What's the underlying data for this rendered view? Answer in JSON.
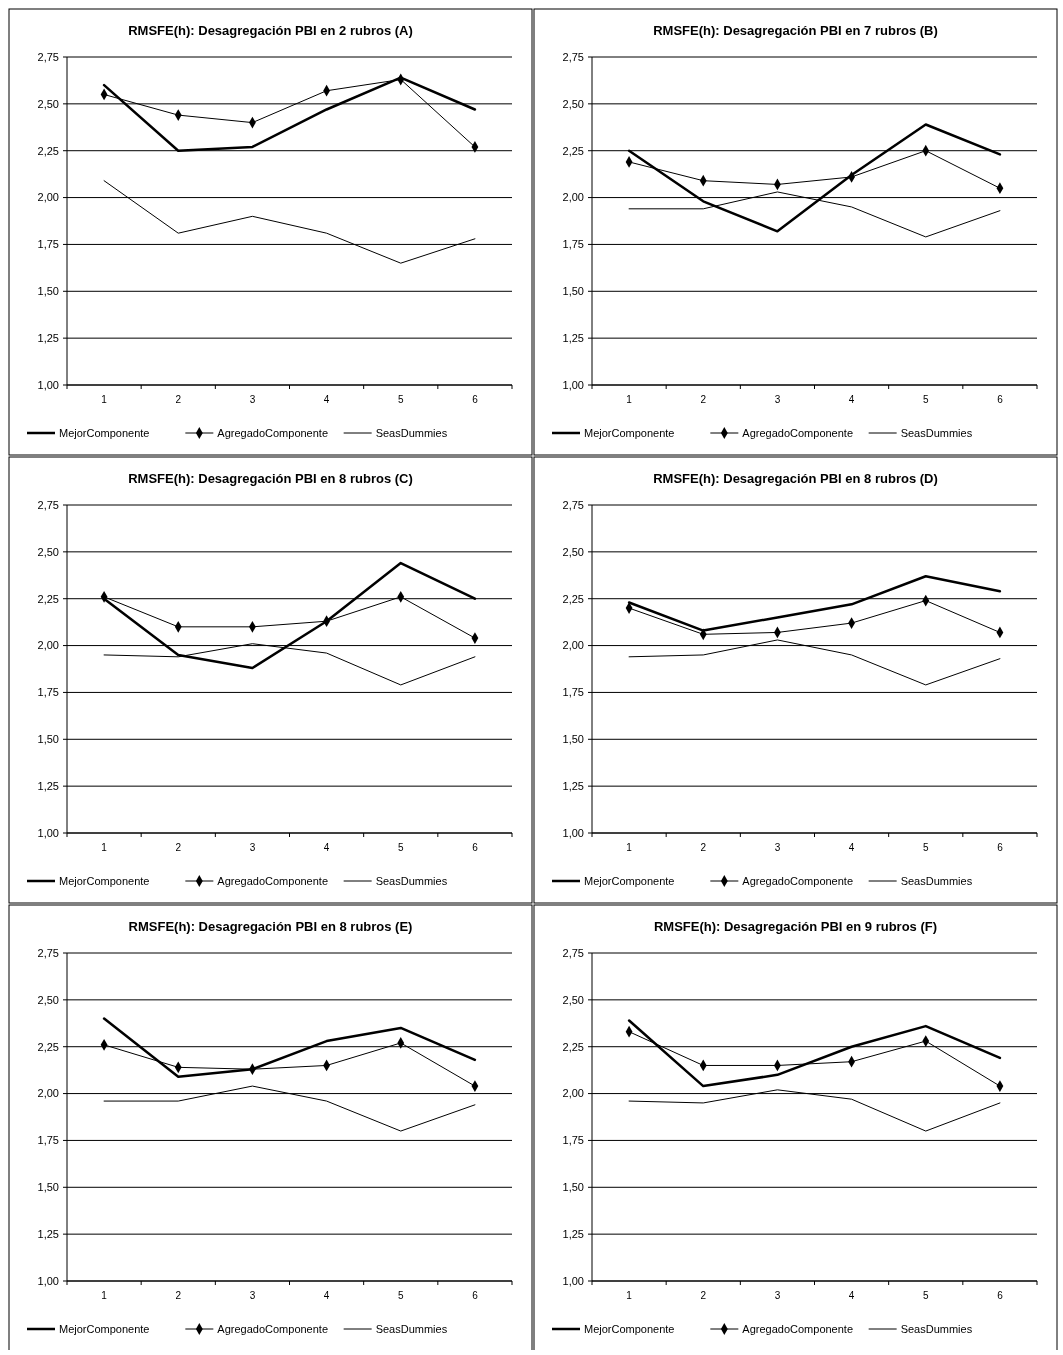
{
  "chart_data": [
    {
      "type": "line",
      "title": "RMSFE(h): Desagregación PBI en 2 rubros (A)",
      "categories": [
        "1",
        "2",
        "3",
        "4",
        "5",
        "6"
      ],
      "ylim": [
        1,
        2.75
      ],
      "yticks": [
        {
          "value": 1,
          "label": "1,00"
        },
        {
          "value": 1.25,
          "label": "1,25"
        },
        {
          "value": 1.5,
          "label": "1,50"
        },
        {
          "value": 1.75,
          "label": "1,75"
        },
        {
          "value": 2,
          "label": "2,00"
        },
        {
          "value": 2.25,
          "label": "2,25"
        },
        {
          "value": 2.5,
          "label": "2,50"
        },
        {
          "value": 2.75,
          "label": "2,75"
        }
      ],
      "grid": "y",
      "legend": "bottom",
      "series": [
        {
          "name": "MejorComponente",
          "color": "#000000",
          "marker": "none",
          "values": [
            2.6,
            2.25,
            2.27,
            2.47,
            2.64,
            2.47
          ]
        },
        {
          "name": "AgregadoComponente",
          "color": "#000000",
          "marker": "diamond",
          "values": [
            2.55,
            2.44,
            2.4,
            2.57,
            2.63,
            2.27
          ]
        },
        {
          "name": "SeasDummies",
          "color": "#000000",
          "marker": "none",
          "values": [
            2.09,
            1.81,
            1.9,
            1.81,
            1.65,
            1.78
          ]
        }
      ]
    },
    {
      "type": "line",
      "title": "RMSFE(h): Desagregación PBI en 7 rubros (B)",
      "categories": [
        "1",
        "2",
        "3",
        "4",
        "5",
        "6"
      ],
      "ylim": [
        1,
        2.75
      ],
      "yticks": [
        {
          "value": 1,
          "label": "1,00"
        },
        {
          "value": 1.25,
          "label": "1,25"
        },
        {
          "value": 1.5,
          "label": "1,50"
        },
        {
          "value": 1.75,
          "label": "1,75"
        },
        {
          "value": 2,
          "label": "2,00"
        },
        {
          "value": 2.25,
          "label": "2,25"
        },
        {
          "value": 2.5,
          "label": "2,50"
        },
        {
          "value": 2.75,
          "label": "2,75"
        }
      ],
      "grid": "y",
      "legend": "bottom",
      "series": [
        {
          "name": "MejorComponente",
          "color": "#000000",
          "marker": "none",
          "values": [
            2.25,
            1.98,
            1.82,
            2.12,
            2.39,
            2.23
          ]
        },
        {
          "name": "AgregadoComponente",
          "color": "#000000",
          "marker": "diamond",
          "values": [
            2.19,
            2.09,
            2.07,
            2.11,
            2.25,
            2.05
          ]
        },
        {
          "name": "SeasDummies",
          "color": "#000000",
          "marker": "none",
          "values": [
            1.94,
            1.94,
            2.03,
            1.95,
            1.79,
            1.93
          ]
        }
      ]
    },
    {
      "type": "line",
      "title": "RMSFE(h): Desagregación PBI en 8 rubros (C)",
      "categories": [
        "1",
        "2",
        "3",
        "4",
        "5",
        "6"
      ],
      "ylim": [
        1,
        2.75
      ],
      "yticks": [
        {
          "value": 1,
          "label": "1,00"
        },
        {
          "value": 1.25,
          "label": "1,25"
        },
        {
          "value": 1.5,
          "label": "1,50"
        },
        {
          "value": 1.75,
          "label": "1,75"
        },
        {
          "value": 2,
          "label": "2,00"
        },
        {
          "value": 2.25,
          "label": "2,25"
        },
        {
          "value": 2.5,
          "label": "2,50"
        },
        {
          "value": 2.75,
          "label": "2,75"
        }
      ],
      "grid": "y",
      "legend": "bottom",
      "series": [
        {
          "name": "MejorComponente",
          "color": "#000000",
          "marker": "none",
          "values": [
            2.25,
            1.95,
            1.88,
            2.13,
            2.44,
            2.25
          ]
        },
        {
          "name": "AgregadoComponente",
          "color": "#000000",
          "marker": "diamond",
          "values": [
            2.26,
            2.1,
            2.1,
            2.13,
            2.26,
            2.04
          ]
        },
        {
          "name": "SeasDummies",
          "color": "#000000",
          "marker": "none",
          "values": [
            1.95,
            1.94,
            2.01,
            1.96,
            1.79,
            1.94
          ]
        }
      ]
    },
    {
      "type": "line",
      "title": "RMSFE(h): Desagregación PBI en 8 rubros (D)",
      "categories": [
        "1",
        "2",
        "3",
        "4",
        "5",
        "6"
      ],
      "ylim": [
        1,
        2.75
      ],
      "yticks": [
        {
          "value": 1,
          "label": "1,00"
        },
        {
          "value": 1.25,
          "label": "1,25"
        },
        {
          "value": 1.5,
          "label": "1,50"
        },
        {
          "value": 1.75,
          "label": "1,75"
        },
        {
          "value": 2,
          "label": "2,00"
        },
        {
          "value": 2.25,
          "label": "2,25"
        },
        {
          "value": 2.5,
          "label": "2,50"
        },
        {
          "value": 2.75,
          "label": "2,75"
        }
      ],
      "grid": "y",
      "legend": "bottom",
      "series": [
        {
          "name": "MejorComponente",
          "color": "#000000",
          "marker": "none",
          "values": [
            2.23,
            2.08,
            2.15,
            2.22,
            2.37,
            2.29
          ]
        },
        {
          "name": "AgregadoComponente",
          "color": "#000000",
          "marker": "diamond",
          "values": [
            2.2,
            2.06,
            2.07,
            2.12,
            2.24,
            2.07
          ]
        },
        {
          "name": "SeasDummies",
          "color": "#000000",
          "marker": "none",
          "values": [
            1.94,
            1.95,
            2.03,
            1.95,
            1.79,
            1.93
          ]
        }
      ]
    },
    {
      "type": "line",
      "title": "RMSFE(h): Desagregación PBI en 8 rubros (E)",
      "categories": [
        "1",
        "2",
        "3",
        "4",
        "5",
        "6"
      ],
      "ylim": [
        1,
        2.75
      ],
      "yticks": [
        {
          "value": 1,
          "label": "1,00"
        },
        {
          "value": 1.25,
          "label": "1,25"
        },
        {
          "value": 1.5,
          "label": "1,50"
        },
        {
          "value": 1.75,
          "label": "1,75"
        },
        {
          "value": 2,
          "label": "2,00"
        },
        {
          "value": 2.25,
          "label": "2,25"
        },
        {
          "value": 2.5,
          "label": "2,50"
        },
        {
          "value": 2.75,
          "label": "2,75"
        }
      ],
      "grid": "y",
      "legend": "bottom",
      "series": [
        {
          "name": "MejorComponente",
          "color": "#000000",
          "marker": "none",
          "values": [
            2.4,
            2.09,
            2.13,
            2.28,
            2.35,
            2.18
          ]
        },
        {
          "name": "AgregadoComponente",
          "color": "#000000",
          "marker": "diamond",
          "values": [
            2.26,
            2.14,
            2.13,
            2.15,
            2.27,
            2.04
          ]
        },
        {
          "name": "SeasDummies",
          "color": "#000000",
          "marker": "none",
          "values": [
            1.96,
            1.96,
            2.04,
            1.96,
            1.8,
            1.94
          ]
        }
      ]
    },
    {
      "type": "line",
      "title": "RMSFE(h): Desagregación PBI en 9 rubros (F)",
      "categories": [
        "1",
        "2",
        "3",
        "4",
        "5",
        "6"
      ],
      "ylim": [
        1,
        2.75
      ],
      "yticks": [
        {
          "value": 1,
          "label": "1,00"
        },
        {
          "value": 1.25,
          "label": "1,25"
        },
        {
          "value": 1.5,
          "label": "1,50"
        },
        {
          "value": 1.75,
          "label": "1,75"
        },
        {
          "value": 2,
          "label": "2,00"
        },
        {
          "value": 2.25,
          "label": "2,25"
        },
        {
          "value": 2.5,
          "label": "2,50"
        },
        {
          "value": 2.75,
          "label": "2,75"
        }
      ],
      "grid": "y",
      "legend": "bottom",
      "series": [
        {
          "name": "MejorComponente",
          "color": "#000000",
          "marker": "none",
          "values": [
            2.39,
            2.04,
            2.1,
            2.25,
            2.36,
            2.19
          ]
        },
        {
          "name": "AgregadoComponente",
          "color": "#000000",
          "marker": "diamond",
          "values": [
            2.33,
            2.15,
            2.15,
            2.17,
            2.28,
            2.04
          ]
        },
        {
          "name": "SeasDummies",
          "color": "#000000",
          "marker": "none",
          "values": [
            1.96,
            1.95,
            2.02,
            1.97,
            1.8,
            1.95
          ]
        }
      ]
    }
  ]
}
